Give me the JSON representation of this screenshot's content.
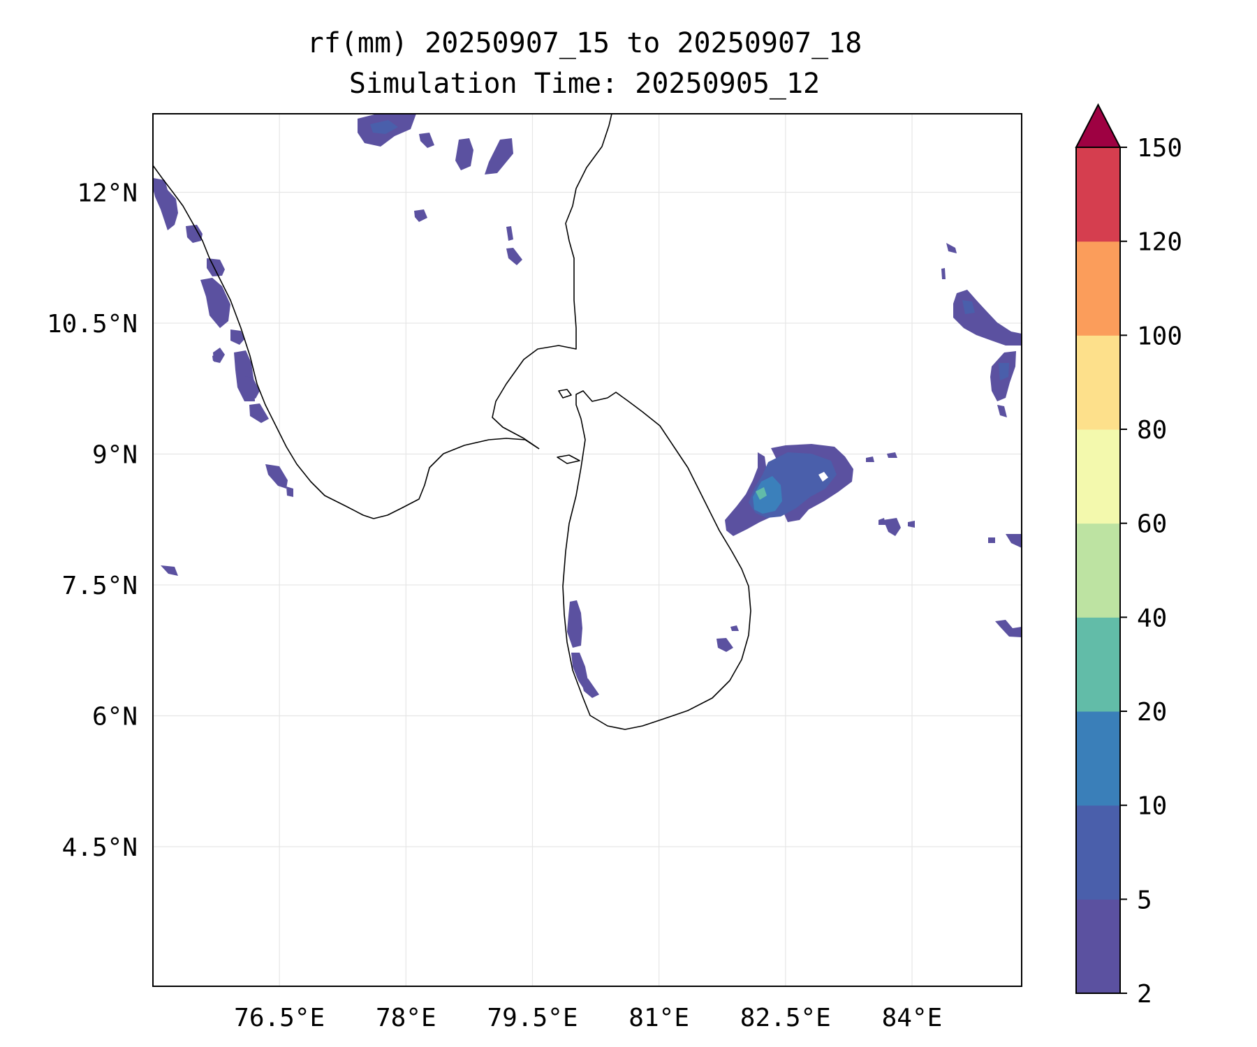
{
  "title": {
    "line1": "rf(mm) 20250907_15 to 20250907_18",
    "line2": "Simulation Time: 20250905_12"
  },
  "map": {
    "lon_range": [
      75.0,
      85.3
    ],
    "lat_range": [
      2.9,
      12.9
    ],
    "lon_ticks": [
      {
        "value": 76.5,
        "label": "76.5°E"
      },
      {
        "value": 78.0,
        "label": "78°E"
      },
      {
        "value": 79.5,
        "label": "79.5°E"
      },
      {
        "value": 81.0,
        "label": "81°E"
      },
      {
        "value": 82.5,
        "label": "82.5°E"
      },
      {
        "value": 84.0,
        "label": "84°E"
      }
    ],
    "lat_ticks": [
      {
        "value": 12.0,
        "label": "12°N"
      },
      {
        "value": 10.5,
        "label": "10.5°N"
      },
      {
        "value": 9.0,
        "label": "9°N"
      },
      {
        "value": 7.5,
        "label": "7.5°N"
      },
      {
        "value": 6.0,
        "label": "6°N"
      },
      {
        "value": 4.5,
        "label": "4.5°N"
      }
    ],
    "gridlines": true
  },
  "colorbar": {
    "extend": "max",
    "levels": [
      {
        "label": "2"
      },
      {
        "label": "5"
      },
      {
        "label": "10"
      },
      {
        "label": "20"
      },
      {
        "label": "40"
      },
      {
        "label": "60"
      },
      {
        "label": "80"
      },
      {
        "label": "100"
      },
      {
        "label": "120"
      },
      {
        "label": "150"
      }
    ],
    "colors": [
      "#5b51a0",
      "#4a5fab",
      "#3a7fb9",
      "#62bca8",
      "#bde3a2",
      "#f3f9ad",
      "#fde08b",
      "#fb9d5b",
      "#d53e4f"
    ],
    "over_color": "#9e0142"
  }
}
